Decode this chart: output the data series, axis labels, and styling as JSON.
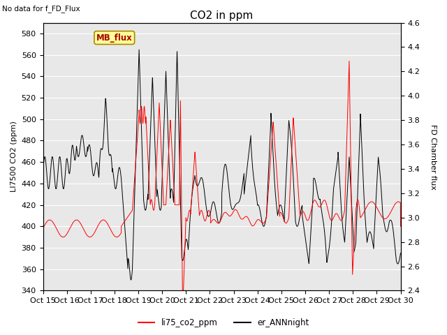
{
  "title": "CO2 in ppm",
  "top_left_text": "No data for f_FD_Flux",
  "ylabel_left": "LI7500 CO2 (ppm)",
  "ylabel_right": "FD Chamber flux",
  "ylim_left": [
    340,
    590
  ],
  "ylim_right": [
    2.4,
    4.6
  ],
  "yticks_left": [
    340,
    360,
    380,
    400,
    420,
    440,
    460,
    480,
    500,
    520,
    540,
    560,
    580
  ],
  "yticks_right": [
    2.4,
    2.6,
    2.8,
    3.0,
    3.2,
    3.4,
    3.6,
    3.8,
    4.0,
    4.2,
    4.4,
    4.6
  ],
  "xtick_labels": [
    "Oct 15",
    "Oct 16",
    "Oct 17",
    "Oct 18",
    "Oct 19",
    "Oct 20",
    "Oct 21",
    "Oct 22",
    "Oct 23",
    "Oct 24",
    "Oct 25",
    "Oct 26",
    "Oct 27",
    "Oct 28",
    "Oct 29",
    "Oct 30"
  ],
  "legend_labels": [
    "li75_co2_ppm",
    "er_ANNnight"
  ],
  "line_color_red": "#ff0000",
  "line_color_black": "#000000",
  "plot_bg_color": "#e8e8e8",
  "mb_flux_box_color": "#ffff99",
  "mb_flux_text_color": "#aa0000",
  "mb_flux_border_color": "#aa8800",
  "title_fontsize": 11,
  "label_fontsize": 8,
  "tick_fontsize": 8
}
